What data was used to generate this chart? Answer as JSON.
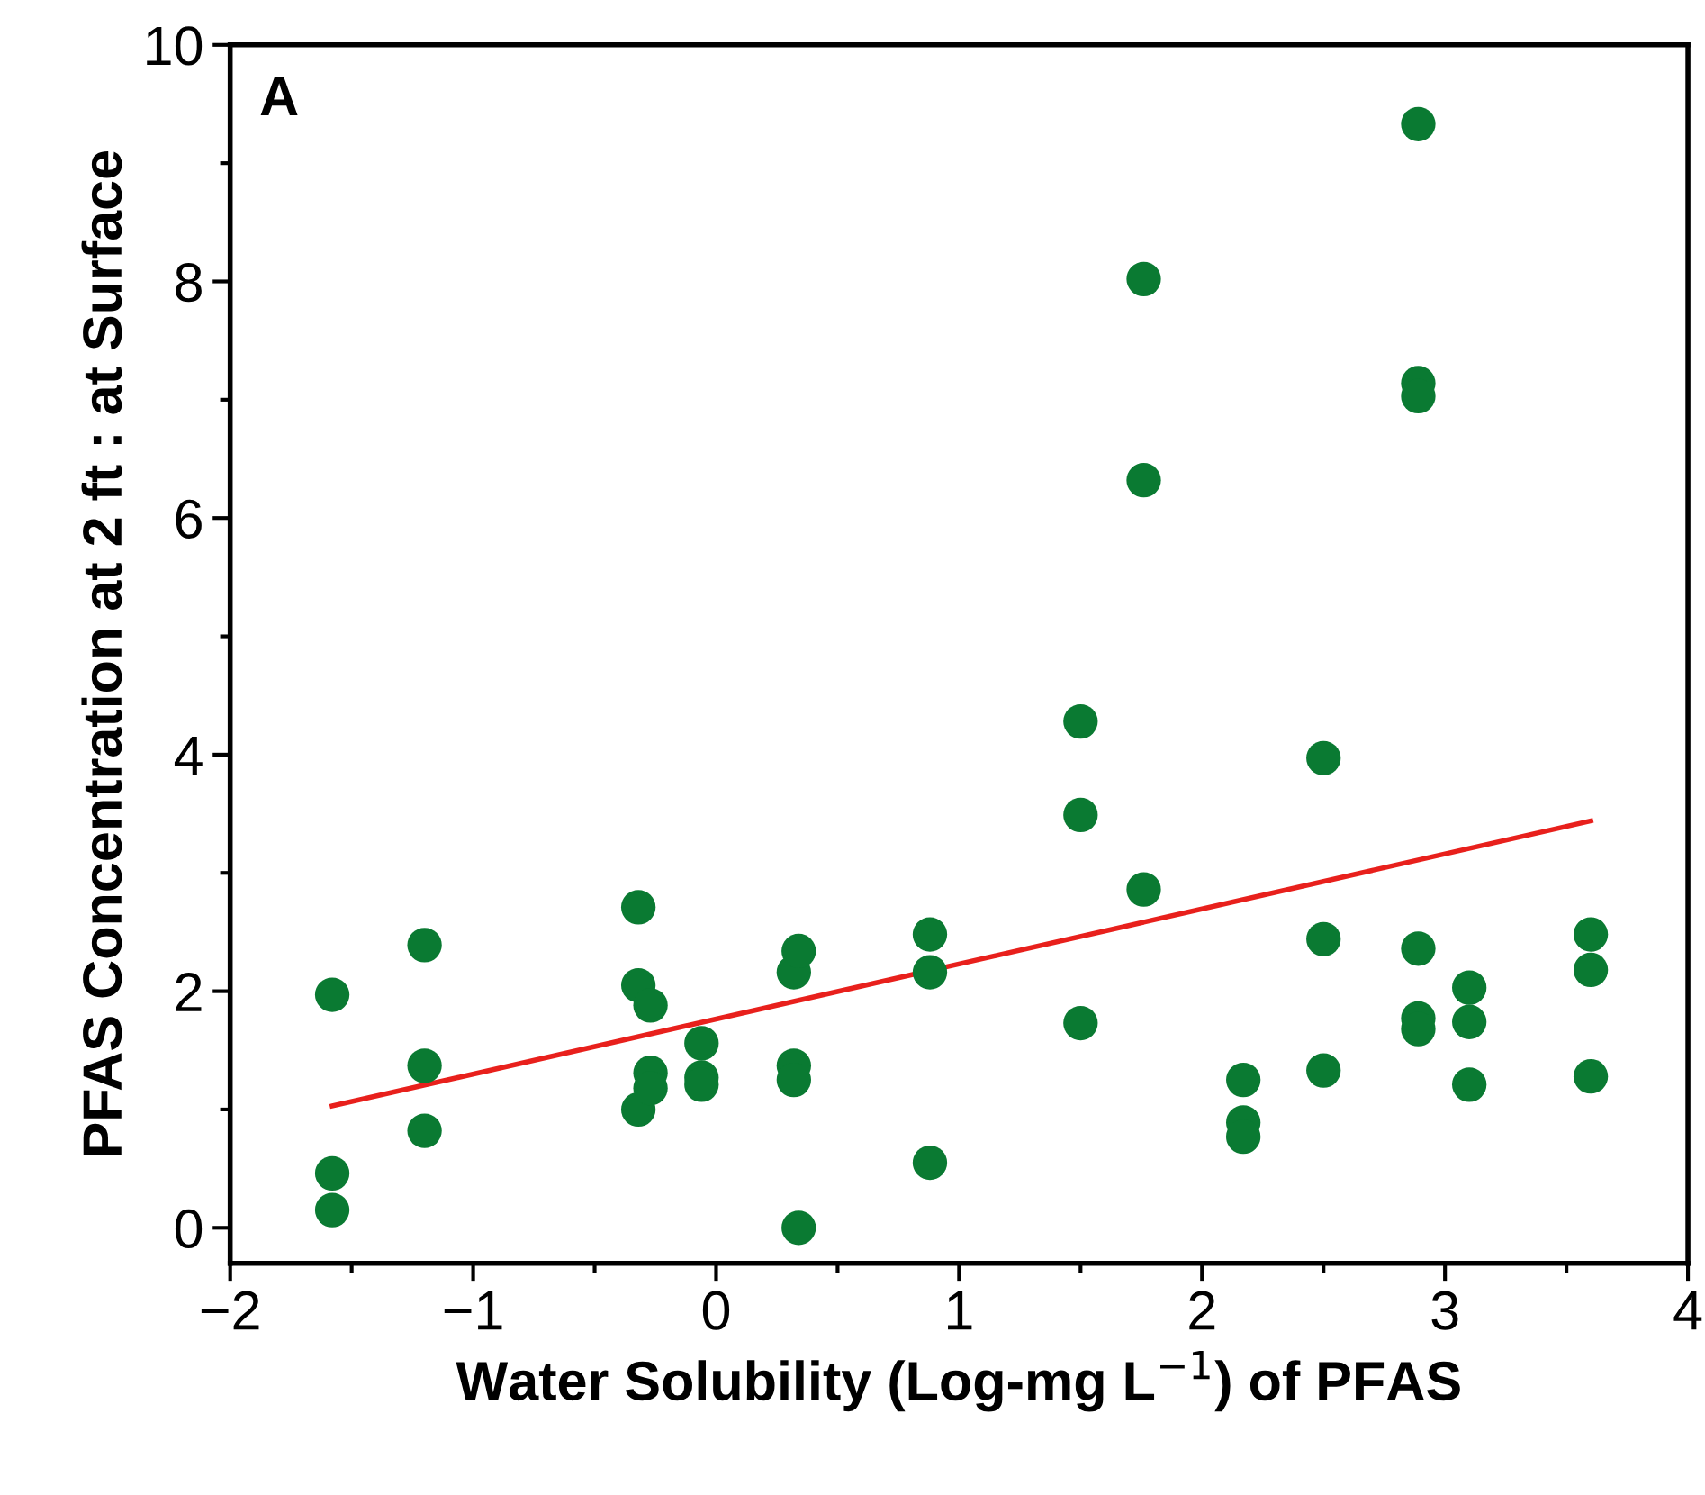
{
  "chart_data": {
    "type": "scatter",
    "xlabel": "Water Solubility (Log-mg L$^{−1}$) of PFAS",
    "ylabel": "PFAS Concentration at 2 ft : at Surface",
    "annotations": [
      "A"
    ],
    "xlim": [
      -2,
      4
    ],
    "xticks": [
      {
        "value": -2,
        "label": "−2"
      },
      {
        "value": -1,
        "label": "−1"
      },
      0,
      1,
      2,
      3,
      4
    ],
    "ylim": [
      -0.3,
      10
    ],
    "yticks": [
      0,
      2,
      4,
      6,
      8,
      10
    ],
    "grid": false,
    "legend": false,
    "series": [
      {
        "marker": "circle",
        "color": "#0a7a32",
        "x": [
          -1.58,
          -1.58,
          -1.58,
          -1.2,
          -1.2,
          -1.2,
          -0.32,
          -0.32,
          -0.32,
          -0.27,
          -0.27,
          -0.27,
          -0.06,
          -0.06,
          -0.06,
          0.32,
          0.32,
          0.32,
          0.34,
          0.34,
          0.88,
          0.88,
          0.88,
          1.5,
          1.5,
          1.5,
          1.76,
          1.76,
          1.76,
          2.17,
          2.17,
          2.17,
          2.5,
          2.5,
          2.5,
          2.89,
          2.89,
          2.89,
          2.89,
          2.89,
          2.89,
          3.1,
          3.1,
          3.1,
          3.6,
          3.6,
          3.6
        ],
        "values": [
          1.97,
          0.46,
          0.15,
          2.39,
          1.37,
          0.82,
          2.71,
          2.05,
          1.0,
          1.88,
          1.31,
          1.18,
          1.56,
          1.27,
          1.21,
          2.16,
          1.37,
          1.25,
          2.34,
          0.0,
          2.48,
          2.16,
          0.55,
          4.28,
          3.49,
          1.73,
          8.02,
          6.32,
          2.86,
          1.25,
          0.89,
          0.77,
          3.97,
          2.44,
          1.33,
          9.33,
          7.14,
          7.03,
          2.36,
          1.77,
          1.68,
          2.03,
          1.74,
          1.21,
          2.48,
          2.18,
          1.28
        ]
      },
      {
        "type": "line",
        "marker": "none",
        "color": "#e8201c",
        "x": [
          -1.58,
          3.6
        ],
        "values": [
          1.03,
          3.44
        ]
      }
    ]
  }
}
